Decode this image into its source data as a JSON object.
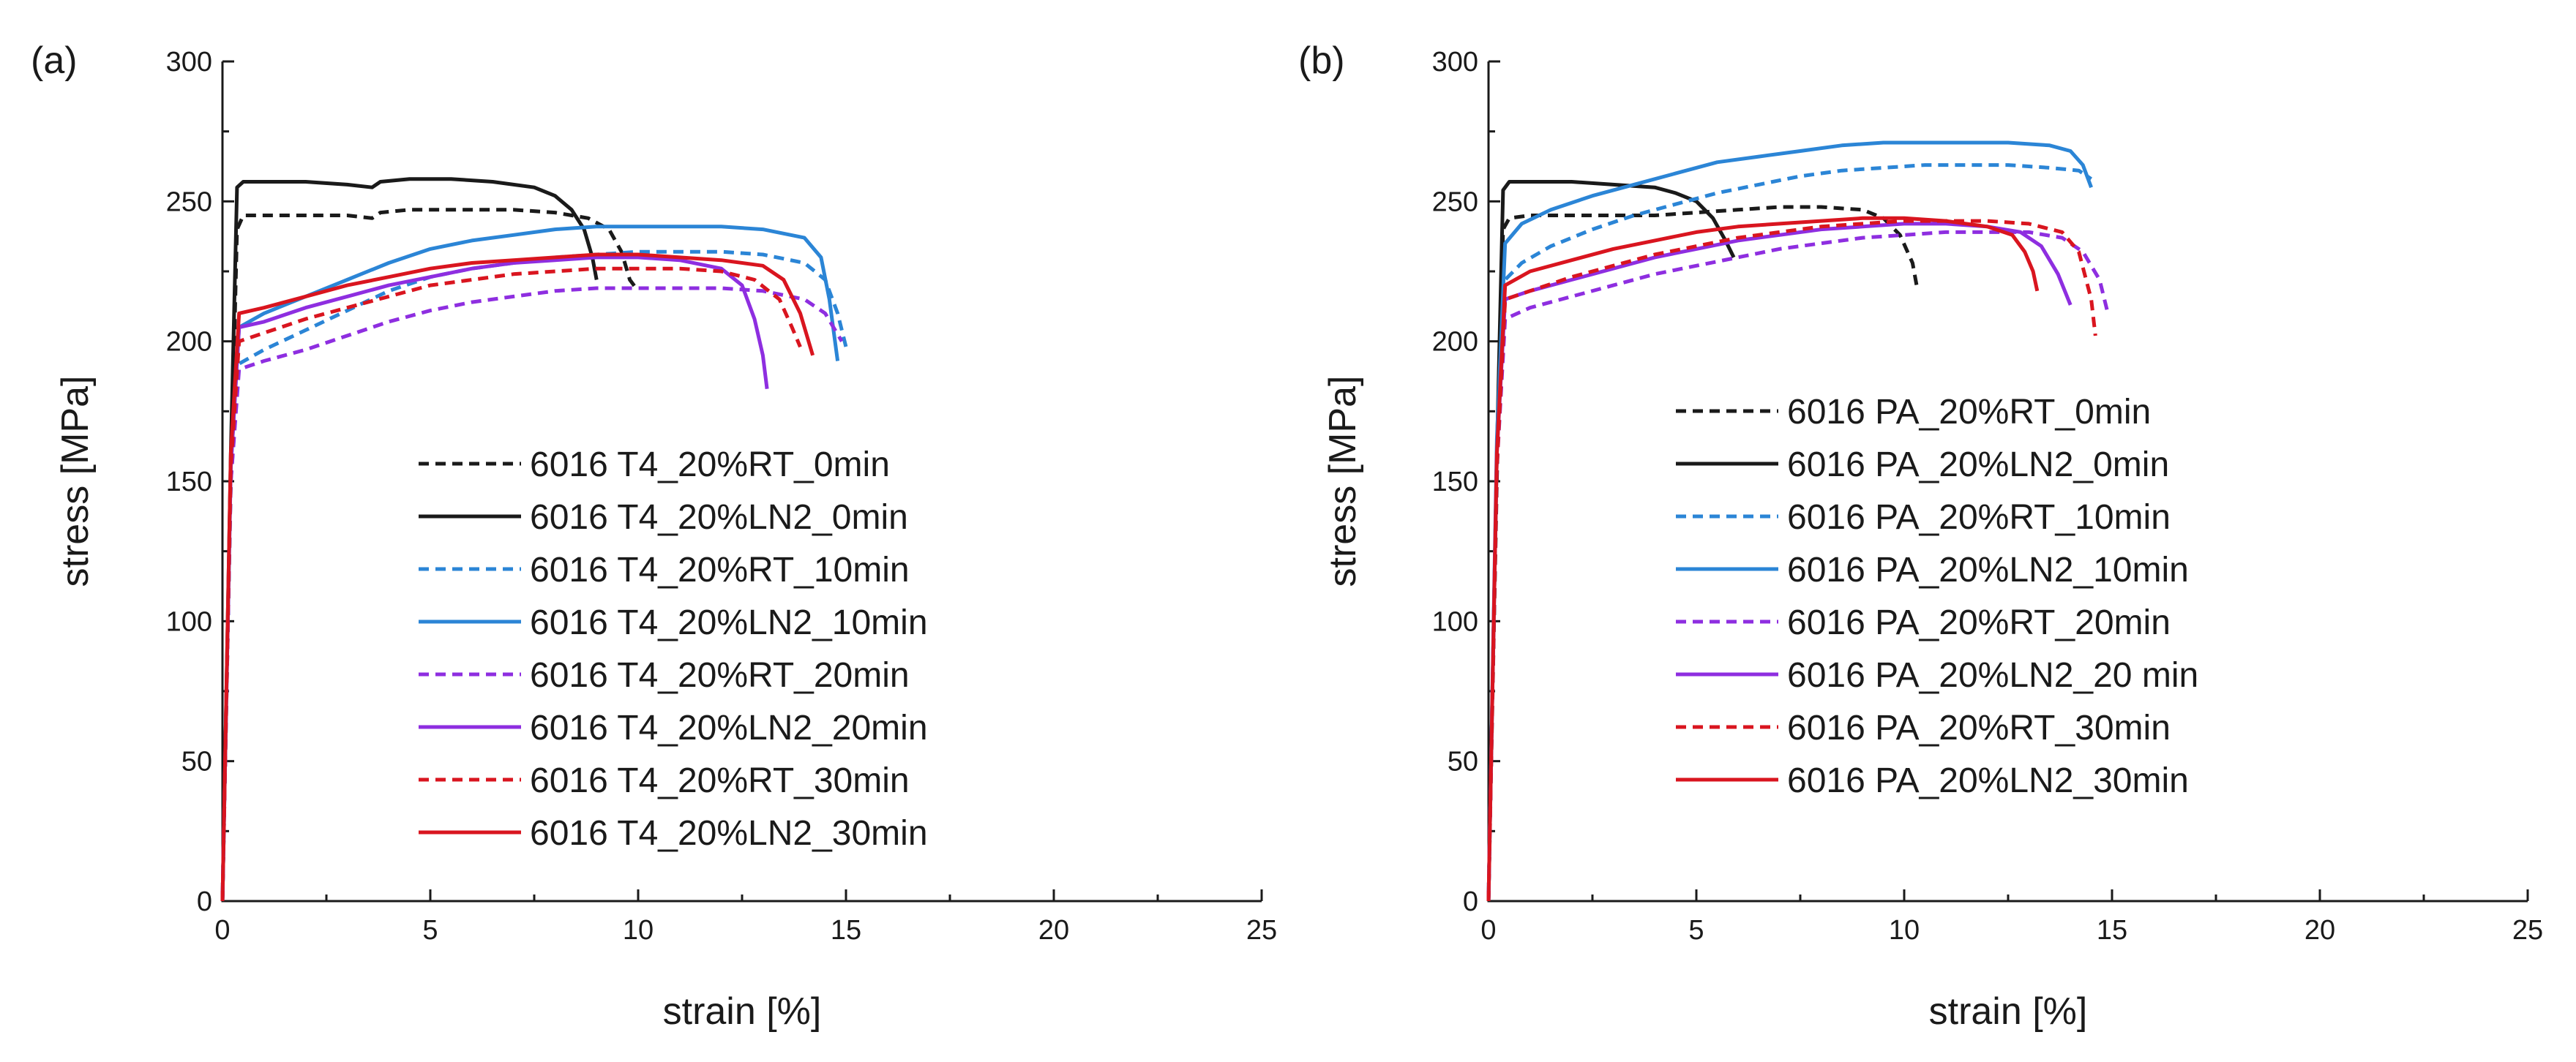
{
  "chart_data": [
    {
      "type": "line",
      "panel_label": "(a)",
      "xlabel": "strain [%]",
      "ylabel": "stress [MPa]",
      "xlim": [
        0,
        25
      ],
      "ylim": [
        0,
        300
      ],
      "xticks": [
        0,
        5,
        10,
        15,
        20,
        25
      ],
      "yticks": [
        0,
        50,
        100,
        150,
        200,
        250,
        300
      ],
      "legend_position": "center",
      "series": [
        {
          "name": "6016 T4_20%RT_0min",
          "color": "#1a1a1a",
          "dash": "dashed",
          "x": [
            0,
            0.2,
            0.35,
            0.5,
            1,
            2,
            3,
            3.6,
            3.8,
            4.5,
            6,
            7,
            8,
            8.8,
            9.3,
            9.6,
            9.8,
            10.0
          ],
          "y": [
            0,
            150,
            240,
            245,
            245,
            245,
            245,
            244,
            246,
            247,
            247,
            247,
            246,
            244,
            240,
            232,
            222,
            218
          ]
        },
        {
          "name": "6016 T4_20%LN2_0min",
          "color": "#1a1a1a",
          "dash": "solid",
          "x": [
            0,
            0.2,
            0.35,
            0.5,
            1,
            2,
            3,
            3.6,
            3.8,
            4.5,
            5.5,
            6.5,
            7.5,
            8.0,
            8.4,
            8.7,
            8.9,
            9.0
          ],
          "y": [
            0,
            160,
            255,
            257,
            257,
            257,
            256,
            255,
            257,
            258,
            258,
            257,
            255,
            252,
            247,
            240,
            230,
            222
          ]
        },
        {
          "name": "6016 T4_20%RT_10min",
          "color": "#2b85d6",
          "dash": "dashed",
          "x": [
            0,
            0.2,
            0.4,
            1,
            2,
            3,
            4,
            5,
            6,
            7,
            8,
            9,
            10,
            11,
            12,
            13,
            14,
            14.5,
            14.8,
            15.0
          ],
          "y": [
            0,
            150,
            192,
            197,
            204,
            211,
            218,
            223,
            226,
            228,
            230,
            231,
            232,
            232,
            232,
            231,
            228,
            222,
            210,
            198
          ]
        },
        {
          "name": "6016 T4_20%LN2_10min",
          "color": "#2b85d6",
          "dash": "solid",
          "x": [
            0,
            0.2,
            0.4,
            1,
            2,
            3,
            4,
            5,
            6,
            7,
            8,
            9,
            10,
            11,
            12,
            13,
            14,
            14.4,
            14.6,
            14.8
          ],
          "y": [
            0,
            155,
            205,
            210,
            216,
            222,
            228,
            233,
            236,
            238,
            240,
            241,
            241,
            241,
            241,
            240,
            237,
            230,
            215,
            193
          ]
        },
        {
          "name": "6016 T4_20%RT_20min",
          "color": "#8e2ee0",
          "dash": "dashed",
          "x": [
            0,
            0.2,
            0.4,
            1,
            2,
            3,
            4,
            5,
            6,
            7,
            8,
            9,
            10,
            11,
            12,
            13,
            14,
            14.5,
            14.9
          ],
          "y": [
            0,
            150,
            190,
            193,
            197,
            202,
            207,
            211,
            214,
            216,
            218,
            219,
            219,
            219,
            219,
            218,
            215,
            210,
            200
          ]
        },
        {
          "name": "6016 T4_20%LN2_20min",
          "color": "#8e2ee0",
          "dash": "solid",
          "x": [
            0,
            0.2,
            0.4,
            1,
            2,
            3,
            4,
            5,
            6,
            7,
            8,
            9,
            10,
            11,
            12,
            12.5,
            12.8,
            13.0,
            13.1
          ],
          "y": [
            0,
            155,
            205,
            207,
            212,
            216,
            220,
            223,
            226,
            228,
            229,
            230,
            230,
            229,
            226,
            220,
            208,
            195,
            183
          ]
        },
        {
          "name": "6016 T4_20%RT_30min",
          "color": "#d9151f",
          "dash": "dashed",
          "x": [
            0,
            0.2,
            0.4,
            1,
            2,
            3,
            4,
            5,
            6,
            7,
            8,
            9,
            10,
            11,
            12,
            12.8,
            13.4,
            13.7,
            13.9
          ],
          "y": [
            0,
            155,
            200,
            203,
            208,
            212,
            216,
            220,
            222,
            224,
            225,
            226,
            226,
            226,
            225,
            222,
            215,
            205,
            198
          ]
        },
        {
          "name": "6016 T4_20%LN2_30min",
          "color": "#d9151f",
          "dash": "solid",
          "x": [
            0,
            0.2,
            0.4,
            1,
            2,
            3,
            4,
            5,
            6,
            7,
            8,
            9,
            10,
            11,
            12,
            13,
            13.5,
            13.9,
            14.2
          ],
          "y": [
            0,
            160,
            210,
            212,
            216,
            220,
            223,
            226,
            228,
            229,
            230,
            231,
            231,
            230,
            229,
            227,
            222,
            210,
            195
          ]
        }
      ]
    },
    {
      "type": "line",
      "panel_label": "(b)",
      "xlabel": "strain [%]",
      "ylabel": "stress [MPa]",
      "xlim": [
        0,
        25
      ],
      "ylim": [
        0,
        300
      ],
      "xticks": [
        0,
        5,
        10,
        15,
        20,
        25
      ],
      "yticks": [
        0,
        50,
        100,
        150,
        200,
        250,
        300
      ],
      "legend_position": "center-right",
      "series": [
        {
          "name": "6016 PA_20%RT_0min",
          "color": "#1a1a1a",
          "dash": "dashed",
          "x": [
            0,
            0.2,
            0.35,
            0.5,
            1,
            2,
            3,
            4,
            5,
            6,
            7,
            8,
            9,
            9.5,
            9.9,
            10.2,
            10.3
          ],
          "y": [
            0,
            150,
            240,
            244,
            245,
            245,
            245,
            245,
            246,
            247,
            248,
            248,
            247,
            244,
            238,
            228,
            220
          ]
        },
        {
          "name": "6016 PA_20%LN2_0min",
          "color": "#1a1a1a",
          "dash": "solid",
          "x": [
            0,
            0.2,
            0.35,
            0.5,
            1,
            2,
            3,
            4,
            4.5,
            5.0,
            5.4,
            5.7,
            5.9
          ],
          "y": [
            0,
            160,
            254,
            257,
            257,
            257,
            256,
            255,
            253,
            250,
            244,
            236,
            230
          ]
        },
        {
          "name": "6016 PA_20%RT_10min",
          "color": "#2b85d6",
          "dash": "dashed",
          "x": [
            0,
            0.2,
            0.4,
            0.8,
            1.5,
            2.5,
            3.5,
            4.5,
            5.5,
            6.5,
            7.5,
            8.5,
            9.5,
            10.5,
            11.5,
            12.5,
            13.5,
            14.2,
            14.5
          ],
          "y": [
            0,
            160,
            222,
            228,
            234,
            240,
            245,
            249,
            253,
            256,
            259,
            261,
            262,
            263,
            263,
            263,
            262,
            261,
            258
          ]
        },
        {
          "name": "6016 PA_20%LN2_10min",
          "color": "#2b85d6",
          "dash": "solid",
          "x": [
            0,
            0.2,
            0.4,
            0.8,
            1.5,
            2.5,
            3.5,
            4.5,
            5.5,
            6.5,
            7.5,
            8.5,
            9.5,
            10.5,
            11.5,
            12.5,
            13.5,
            14.0,
            14.3,
            14.5
          ],
          "y": [
            0,
            165,
            235,
            242,
            247,
            252,
            256,
            260,
            264,
            266,
            268,
            270,
            271,
            271,
            271,
            271,
            270,
            268,
            263,
            255
          ]
        },
        {
          "name": "6016 PA_20%RT_20min",
          "color": "#8e2ee0",
          "dash": "dashed",
          "x": [
            0,
            0.2,
            0.4,
            1,
            2,
            3,
            4,
            5,
            6,
            7,
            8,
            9,
            10,
            11,
            12,
            13,
            13.8,
            14.3,
            14.7,
            14.9
          ],
          "y": [
            0,
            155,
            208,
            212,
            216,
            220,
            224,
            227,
            230,
            233,
            235,
            237,
            238,
            239,
            239,
            239,
            237,
            232,
            222,
            210
          ]
        },
        {
          "name": "6016 PA_20%LN2_20 min",
          "color": "#8e2ee0",
          "dash": "solid",
          "x": [
            0,
            0.2,
            0.4,
            1,
            2,
            3,
            4,
            5,
            6,
            7,
            8,
            9,
            10,
            11,
            12,
            12.8,
            13.3,
            13.7,
            14.0
          ],
          "y": [
            0,
            160,
            215,
            218,
            222,
            226,
            230,
            233,
            236,
            238,
            240,
            241,
            242,
            242,
            241,
            239,
            234,
            224,
            213
          ]
        },
        {
          "name": "6016 PA_20%RT_30min",
          "color": "#d9151f",
          "dash": "dashed",
          "x": [
            0,
            0.2,
            0.4,
            1,
            2,
            3,
            4,
            5,
            6,
            7,
            8,
            9,
            10,
            11,
            12,
            13,
            13.8,
            14.2,
            14.5,
            14.6
          ],
          "y": [
            0,
            155,
            215,
            218,
            223,
            227,
            231,
            234,
            237,
            239,
            241,
            242,
            243,
            243,
            243,
            242,
            239,
            232,
            215,
            202
          ]
        },
        {
          "name": "6016 PA_20%LN2_30min",
          "color": "#d9151f",
          "dash": "solid",
          "x": [
            0,
            0.2,
            0.4,
            1,
            2,
            3,
            4,
            5,
            6,
            7,
            8,
            9,
            10,
            11,
            12,
            12.6,
            12.9,
            13.1,
            13.2
          ],
          "y": [
            0,
            160,
            220,
            225,
            229,
            233,
            236,
            239,
            241,
            242,
            243,
            244,
            244,
            243,
            241,
            238,
            232,
            225,
            218
          ]
        }
      ]
    }
  ]
}
